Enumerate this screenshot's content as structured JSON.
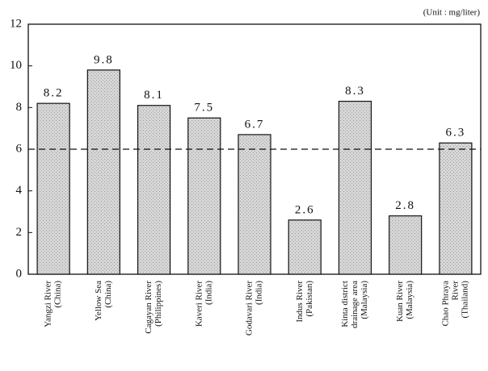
{
  "chart_data": {
    "type": "bar",
    "annotation": "(Unit : mg/liter)",
    "categories": [
      [
        "Yangzi River",
        "(China)"
      ],
      [
        "Yellow Sea",
        "(China)"
      ],
      [
        "Cagayan River",
        "(Philippines)"
      ],
      [
        "Kaveri River",
        "(India)"
      ],
      [
        "Godavari River",
        "(India)"
      ],
      [
        "Indus River",
        "(Pakistan)"
      ],
      [
        "Kinta district",
        "drainage area",
        "(Malaysia)"
      ],
      [
        "Kuan River",
        "(Malaysia)"
      ],
      [
        "Chao Phraya",
        "River",
        "(Thailand)"
      ]
    ],
    "values": [
      8.2,
      9.8,
      8.1,
      7.5,
      6.7,
      2.6,
      8.3,
      2.8,
      6.3
    ],
    "color": "#cfcfcf",
    "reference_line": 6,
    "ylim": [
      0,
      12
    ],
    "yticks": [
      0,
      2,
      4,
      6,
      8,
      10,
      12
    ]
  }
}
